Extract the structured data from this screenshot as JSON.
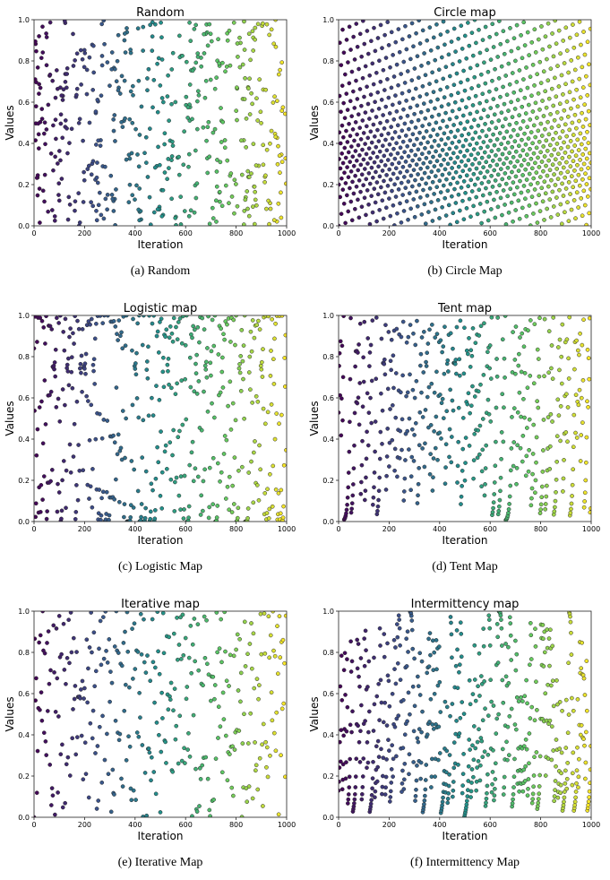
{
  "figure_captions": [
    "(a)  Random",
    "(b)  Circle Map",
    "(c)  Logistic Map",
    "(d)  Tent Map",
    "(e)  Iterative Map",
    "(f)  Intermittency Map"
  ],
  "colormap": [
    "#440154",
    "#3b528b",
    "#21918c",
    "#5ec962",
    "#fde725"
  ],
  "chart_data": [
    {
      "id": "random",
      "type": "scatter",
      "title": "Random",
      "caption": "(a)  Random",
      "xlabel": "Iteration",
      "ylabel": "Values",
      "xlim": [
        0,
        1000
      ],
      "ylim": [
        0,
        1
      ],
      "xticks": [
        "0",
        "200",
        "400",
        "600",
        "800",
        "1000"
      ],
      "yticks": [
        "0.0",
        "0.2",
        "0.4",
        "0.6",
        "0.8",
        "1.0"
      ],
      "generator": "random",
      "n_points": 500,
      "color_by": "iteration"
    },
    {
      "id": "circle",
      "type": "scatter",
      "title": "Circle map",
      "caption": "(b)  Circle Map",
      "xlabel": "Iteration",
      "ylabel": "Values",
      "xlim": [
        0,
        1000
      ],
      "ylim": [
        0,
        1
      ],
      "xticks": [
        "0",
        "200",
        "400",
        "600",
        "800",
        "1000"
      ],
      "yticks": [
        "0.0",
        "0.2",
        "0.4",
        "0.6",
        "0.8",
        "1.0"
      ],
      "generator": "circle",
      "params": {
        "a": 0.5,
        "b": 0.2
      },
      "n_points": 1000,
      "color_by": "iteration"
    },
    {
      "id": "logistic",
      "type": "scatter",
      "title": "Logistic map",
      "caption": "(c)  Logistic Map",
      "xlabel": "Iteration",
      "ylabel": "Values",
      "xlim": [
        0,
        1000
      ],
      "ylim": [
        0,
        1
      ],
      "xticks": [
        "0",
        "200",
        "400",
        "600",
        "800",
        "1000"
      ],
      "yticks": [
        "0.0",
        "0.2",
        "0.4",
        "0.6",
        "0.8",
        "1.0"
      ],
      "generator": "logistic",
      "params": {
        "r": 4
      },
      "n_points": 500,
      "color_by": "iteration"
    },
    {
      "id": "tent",
      "type": "scatter",
      "title": "Tent map",
      "caption": "(d)  Tent Map",
      "xlabel": "Iteration",
      "ylabel": "Values",
      "xlim": [
        0,
        1000
      ],
      "ylim": [
        0,
        1
      ],
      "xticks": [
        "0",
        "200",
        "400",
        "600",
        "800",
        "1000"
      ],
      "yticks": [
        "0.0",
        "0.2",
        "0.4",
        "0.6",
        "0.8",
        "1.0"
      ],
      "generator": "tent",
      "params": {
        "mu": 0.7
      },
      "n_points": 500,
      "color_by": "iteration"
    },
    {
      "id": "iterative",
      "type": "scatter",
      "title": "Iterative map",
      "caption": "(e)  Iterative Map",
      "xlabel": "Iteration",
      "ylabel": "Values",
      "xlim": [
        0,
        1000
      ],
      "ylim": [
        0,
        1
      ],
      "xticks": [
        "0",
        "200",
        "400",
        "600",
        "800",
        "1000"
      ],
      "yticks": [
        "0.0",
        "0.2",
        "0.4",
        "0.6",
        "0.8",
        "1.0"
      ],
      "generator": "iterative",
      "params": {
        "a": 0.7
      },
      "n_points": 350,
      "color_by": "iteration"
    },
    {
      "id": "intermittency",
      "type": "scatter",
      "title": "Intermittency map",
      "caption": "(f)  Intermittency Map",
      "xlabel": "Iteration",
      "ylabel": "Values",
      "xlim": [
        0,
        1000
      ],
      "ylim": [
        0,
        1
      ],
      "xticks": [
        "0",
        "200",
        "400",
        "600",
        "800",
        "1000"
      ],
      "yticks": [
        "0.0",
        "0.2",
        "0.4",
        "0.6",
        "0.8",
        "1.0"
      ],
      "generator": "intermittency",
      "n_points": 600,
      "color_by": "iteration"
    }
  ]
}
